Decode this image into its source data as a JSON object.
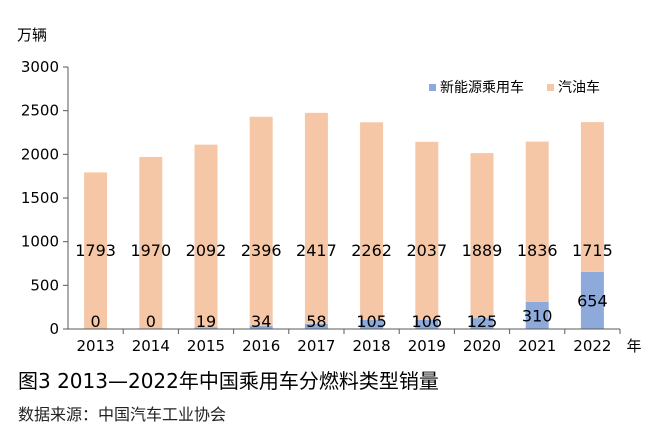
{
  "caption": "图3   2013—2022年中国乘用车分燃料类型销量",
  "source": "数据来源：中国汽车工业协会",
  "chart_data": {
    "type": "bar",
    "stacked": true,
    "unit_label": "万辆",
    "x_suffix": "年",
    "categories": [
      "2013",
      "2014",
      "2015",
      "2016",
      "2017",
      "2018",
      "2019",
      "2020",
      "2021",
      "2022"
    ],
    "series": [
      {
        "name": "新能源乘用车",
        "color": "#8eaadb",
        "values": [
          0,
          0,
          19,
          34,
          58,
          105,
          106,
          125,
          310,
          654
        ]
      },
      {
        "name": "汽油车",
        "color": "#f6c7a6",
        "values": [
          1793,
          1970,
          2092,
          2396,
          2417,
          2262,
          2037,
          1889,
          1836,
          1715
        ]
      }
    ],
    "ylim": [
      0,
      3000
    ],
    "yticks": [
      0,
      500,
      1000,
      1500,
      2000,
      2500,
      3000
    ],
    "grid": false,
    "legend": "top-right"
  }
}
